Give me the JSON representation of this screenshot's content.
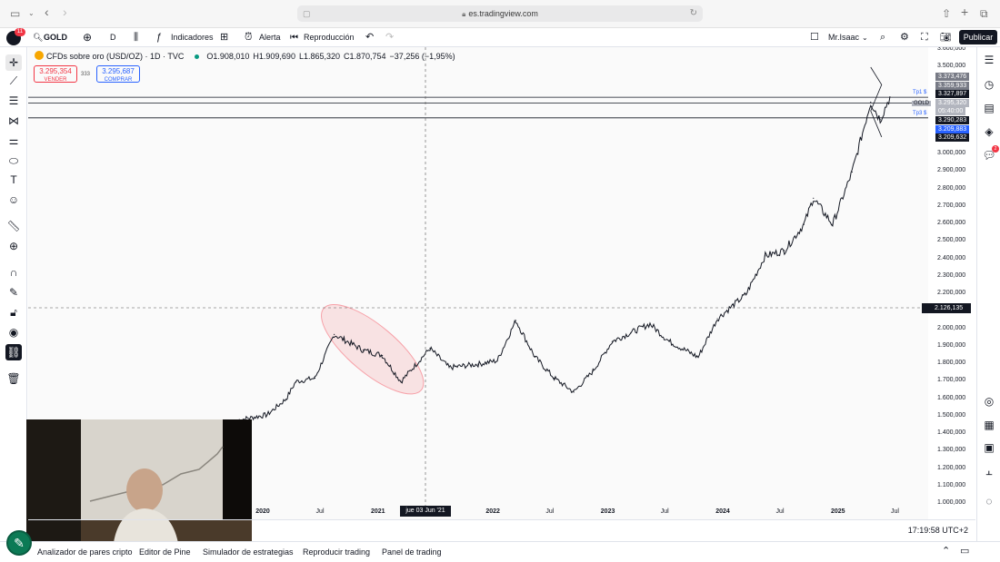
{
  "browser": {
    "url": "es.tradingview.com"
  },
  "toolbar": {
    "notifications_count": "11",
    "symbol": "GOLD",
    "interval": "D",
    "indicators_label": "Indicadores",
    "alert_label": "Alerta",
    "replay_label": "Reproducción",
    "user_name": "Mr.Isaac",
    "publish_label": "Publicar"
  },
  "legend": {
    "title": "CFDs sobre oro (USD/OZ) · 1D · TVC",
    "open": "O1.908,010",
    "high": "H1.909,690",
    "low": "L1.865,320",
    "close": "C1.870,754",
    "change": "−37,256 (−1,95%)",
    "sell_price": "3.295,354",
    "sell_label": "VENDER",
    "spread": "333",
    "buy_price": "3.295,687",
    "buy_label": "COMPRAR"
  },
  "right_rail": {
    "notifications_count": "2"
  },
  "price_axis": {
    "ticks": [
      "3.600,000",
      "3.500,000",
      "3.000,000",
      "2.900,000",
      "2.800,000",
      "2.700,000",
      "2.600,000",
      "2.500,000",
      "2.400,000",
      "2.300,000",
      "2.200,000",
      "2.000,000",
      "1.900,000",
      "1.800,000",
      "1.700,000",
      "1.600,000",
      "1.500,000",
      "1.400,000",
      "1.300,000",
      "1.200,000",
      "1.100,000",
      "1.000,000"
    ],
    "tags": [
      {
        "text": "3.373,476",
        "color": "#787b86"
      },
      {
        "text": "3.359,933",
        "color": "#787b86"
      },
      {
        "text": "3.327,897",
        "color": "#131722"
      },
      {
        "text": "3.295,320",
        "color": "#b2b5be"
      },
      {
        "text": "05:40:00",
        "color": "#b2b5be"
      },
      {
        "text": "3.290,283",
        "color": "#131722"
      },
      {
        "text": "3.209,883",
        "color": "#2962ff"
      },
      {
        "text": "3.209,632",
        "color": "#131722"
      }
    ],
    "line_labels": {
      "tp1": "Tp1 $",
      "gold": "GOLD",
      "tp3": "Tp3 $"
    },
    "crosshair_price": "2.126,135"
  },
  "time_axis": {
    "ticks": [
      "2020",
      "Jul",
      "2021",
      "2022",
      "Jul",
      "2023",
      "Jul",
      "2024",
      "Jul",
      "2025",
      "Jul"
    ],
    "crosshair_date": "jue 03 Jun '21"
  },
  "status": {
    "clock": "17:19:58 UTC+2"
  },
  "bottom_panel": {
    "tabs": [
      "Analizador de pares cripto",
      "Editor de Pine",
      "Simulador de estrategias",
      "Reproducir trading",
      "Panel de trading"
    ]
  },
  "chart_data": {
    "type": "line",
    "symbol": "GOLD",
    "interval": "1D",
    "ylim": [
      1000,
      3600
    ],
    "x": [
      "2019-10",
      "2020-01",
      "2020-03",
      "2020-04",
      "2020-06",
      "2020-08",
      "2020-09",
      "2020-11",
      "2021-01",
      "2021-03",
      "2021-06",
      "2021-08",
      "2021-11",
      "2022-01",
      "2022-03",
      "2022-05",
      "2022-07",
      "2022-09",
      "2022-11",
      "2023-01",
      "2023-03",
      "2023-05",
      "2023-07",
      "2023-10",
      "2023-12",
      "2024-03",
      "2024-05",
      "2024-07",
      "2024-09",
      "2024-10",
      "2024-12",
      "2025-02",
      "2025-04",
      "2025-05",
      "2025-06"
    ],
    "values": [
      1480,
      1510,
      1600,
      1700,
      1720,
      1970,
      1940,
      1880,
      1850,
      1700,
      1890,
      1780,
      1800,
      1820,
      2050,
      1840,
      1720,
      1640,
      1760,
      1930,
      1980,
      2030,
      1930,
      1840,
      2060,
      2200,
      2420,
      2450,
      2600,
      2750,
      2600,
      2900,
      3300,
      3200,
      3330
    ],
    "annotations": {
      "horizontal_lines": [
        3327.897,
        3295.32,
        3209.883
      ],
      "ellipse_highlight": "2020-08 to 2021-04"
    },
    "title": "CFDs sobre oro (USD/OZ) · 1D · TVC"
  }
}
